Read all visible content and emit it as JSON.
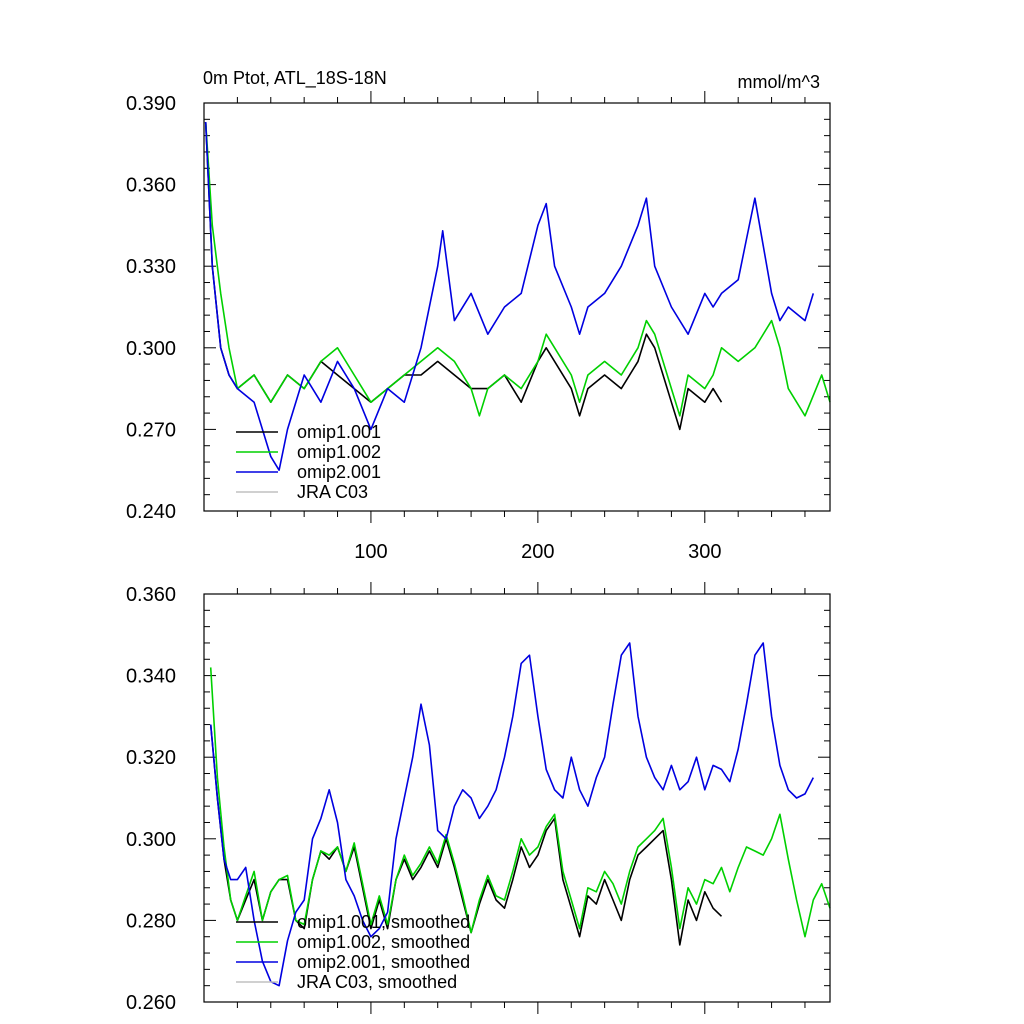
{
  "chart_data": [
    {
      "type": "line",
      "title_left": "0m Ptot, ATL_18S-18N",
      "title_right": "mmol/m^3",
      "xlabel": "",
      "ylabel": "",
      "xlim": [
        0,
        375
      ],
      "ylim": [
        0.24,
        0.39
      ],
      "x_ticks": [
        100,
        200,
        300
      ],
      "x_tick_labels": [
        "100",
        "200",
        "300"
      ],
      "y_ticks": [
        0.24,
        0.27,
        0.3,
        0.33,
        0.36,
        0.39
      ],
      "y_tick_labels": [
        "0.240",
        "0.270",
        "0.300",
        "0.330",
        "0.360",
        "0.390"
      ],
      "legend": "bottom-left",
      "series": [
        {
          "name": "omip1.001",
          "color": "#000000",
          "x": [
            1,
            5,
            10,
            15,
            20,
            30,
            40,
            50,
            60,
            70,
            80,
            90,
            100,
            110,
            120,
            130,
            140,
            150,
            160,
            170,
            180,
            190,
            200,
            205,
            210,
            220,
            225,
            230,
            240,
            250,
            260,
            265,
            270,
            280,
            285,
            290,
            300,
            305,
            310
          ],
          "y": [
            0.383,
            0.33,
            0.3,
            0.29,
            0.285,
            0.29,
            0.28,
            0.29,
            0.285,
            0.295,
            0.29,
            0.285,
            0.28,
            0.285,
            0.29,
            0.29,
            0.295,
            0.29,
            0.285,
            0.285,
            0.29,
            0.28,
            0.295,
            0.3,
            0.295,
            0.285,
            0.275,
            0.285,
            0.29,
            0.285,
            0.295,
            0.305,
            0.3,
            0.28,
            0.27,
            0.285,
            0.28,
            0.285,
            0.28
          ]
        },
        {
          "name": "omip1.002",
          "color": "#00d000",
          "x": [
            1,
            5,
            10,
            15,
            20,
            30,
            40,
            50,
            60,
            70,
            80,
            90,
            100,
            110,
            120,
            130,
            140,
            150,
            160,
            165,
            170,
            180,
            190,
            200,
            205,
            210,
            220,
            225,
            230,
            240,
            250,
            260,
            265,
            270,
            280,
            285,
            290,
            300,
            305,
            310,
            320,
            330,
            340,
            345,
            350,
            360,
            370,
            375
          ],
          "y": [
            0.383,
            0.345,
            0.32,
            0.3,
            0.285,
            0.29,
            0.28,
            0.29,
            0.285,
            0.295,
            0.3,
            0.29,
            0.28,
            0.285,
            0.29,
            0.295,
            0.3,
            0.295,
            0.285,
            0.275,
            0.285,
            0.29,
            0.285,
            0.295,
            0.305,
            0.3,
            0.29,
            0.28,
            0.29,
            0.295,
            0.29,
            0.3,
            0.31,
            0.305,
            0.285,
            0.275,
            0.29,
            0.285,
            0.29,
            0.3,
            0.295,
            0.3,
            0.31,
            0.3,
            0.285,
            0.275,
            0.29,
            0.28
          ]
        },
        {
          "name": "omip2.001",
          "color": "#0000e0",
          "x": [
            1,
            5,
            10,
            15,
            20,
            30,
            40,
            45,
            50,
            60,
            70,
            80,
            90,
            100,
            110,
            120,
            130,
            140,
            143,
            150,
            160,
            170,
            180,
            190,
            200,
            205,
            210,
            220,
            225,
            230,
            240,
            250,
            260,
            265,
            270,
            280,
            290,
            300,
            305,
            310,
            320,
            325,
            330,
            340,
            345,
            350,
            360,
            365
          ],
          "y": [
            0.383,
            0.33,
            0.3,
            0.29,
            0.285,
            0.28,
            0.26,
            0.255,
            0.27,
            0.29,
            0.28,
            0.295,
            0.285,
            0.27,
            0.285,
            0.28,
            0.3,
            0.33,
            0.343,
            0.31,
            0.32,
            0.305,
            0.315,
            0.32,
            0.345,
            0.353,
            0.33,
            0.315,
            0.305,
            0.315,
            0.32,
            0.33,
            0.345,
            0.355,
            0.33,
            0.315,
            0.305,
            0.32,
            0.315,
            0.32,
            0.325,
            0.34,
            0.355,
            0.32,
            0.31,
            0.315,
            0.31,
            0.32
          ]
        },
        {
          "name": "JRA C03",
          "color": "#c0c0c0",
          "x": [],
          "y": []
        }
      ]
    },
    {
      "type": "line",
      "title_left": "",
      "title_right": "",
      "xlabel": "",
      "ylabel": "",
      "xlim": [
        0,
        375
      ],
      "ylim": [
        0.26,
        0.36
      ],
      "x_ticks": [
        100,
        200,
        300
      ],
      "x_tick_labels": [],
      "y_ticks": [
        0.26,
        0.28,
        0.3,
        0.32,
        0.34,
        0.36
      ],
      "y_tick_labels": [
        "0.260",
        "0.280",
        "0.300",
        "0.320",
        "0.340",
        "0.360"
      ],
      "legend": "bottom-left",
      "series": [
        {
          "name": "omip1.001, smoothed",
          "color": "#000000",
          "x": [
            4,
            8,
            12,
            16,
            20,
            25,
            30,
            35,
            40,
            45,
            50,
            55,
            60,
            65,
            70,
            75,
            80,
            85,
            90,
            95,
            100,
            105,
            110,
            115,
            120,
            125,
            130,
            135,
            140,
            145,
            150,
            155,
            160,
            165,
            170,
            175,
            180,
            185,
            190,
            195,
            200,
            205,
            210,
            215,
            220,
            225,
            230,
            235,
            240,
            245,
            250,
            255,
            260,
            265,
            270,
            275,
            280,
            285,
            290,
            295,
            300,
            305,
            310
          ],
          "y": [
            0.328,
            0.31,
            0.295,
            0.285,
            0.28,
            0.285,
            0.29,
            0.28,
            0.287,
            0.29,
            0.29,
            0.28,
            0.278,
            0.29,
            0.297,
            0.295,
            0.298,
            0.292,
            0.298,
            0.288,
            0.278,
            0.285,
            0.278,
            0.29,
            0.295,
            0.29,
            0.293,
            0.297,
            0.293,
            0.3,
            0.293,
            0.285,
            0.277,
            0.284,
            0.29,
            0.285,
            0.283,
            0.29,
            0.298,
            0.293,
            0.296,
            0.302,
            0.305,
            0.29,
            0.283,
            0.276,
            0.286,
            0.284,
            0.29,
            0.285,
            0.28,
            0.29,
            0.296,
            0.298,
            0.3,
            0.302,
            0.29,
            0.274,
            0.285,
            0.28,
            0.287,
            0.283,
            0.281
          ]
        },
        {
          "name": "omip1.002, smoothed",
          "color": "#00d000",
          "x": [
            4,
            8,
            12,
            16,
            20,
            25,
            30,
            35,
            40,
            45,
            50,
            55,
            60,
            65,
            70,
            75,
            80,
            85,
            90,
            95,
            100,
            105,
            110,
            115,
            120,
            125,
            130,
            135,
            140,
            145,
            150,
            155,
            160,
            165,
            170,
            175,
            180,
            185,
            190,
            195,
            200,
            205,
            210,
            215,
            220,
            225,
            230,
            235,
            240,
            245,
            250,
            255,
            260,
            265,
            270,
            275,
            280,
            285,
            290,
            295,
            300,
            305,
            310,
            315,
            320,
            325,
            330,
            335,
            340,
            345,
            350,
            355,
            360,
            365,
            370,
            375
          ],
          "y": [
            0.342,
            0.315,
            0.298,
            0.285,
            0.28,
            0.286,
            0.292,
            0.28,
            0.287,
            0.29,
            0.291,
            0.28,
            0.279,
            0.29,
            0.297,
            0.296,
            0.298,
            0.292,
            0.299,
            0.289,
            0.279,
            0.286,
            0.279,
            0.29,
            0.296,
            0.291,
            0.294,
            0.298,
            0.294,
            0.301,
            0.294,
            0.286,
            0.277,
            0.285,
            0.291,
            0.286,
            0.285,
            0.292,
            0.3,
            0.296,
            0.298,
            0.303,
            0.306,
            0.292,
            0.285,
            0.278,
            0.288,
            0.287,
            0.292,
            0.289,
            0.284,
            0.292,
            0.298,
            0.3,
            0.302,
            0.305,
            0.293,
            0.278,
            0.288,
            0.284,
            0.29,
            0.289,
            0.293,
            0.287,
            0.293,
            0.298,
            0.297,
            0.296,
            0.3,
            0.306,
            0.295,
            0.285,
            0.276,
            0.285,
            0.289,
            0.283
          ]
        },
        {
          "name": "omip2.001, smoothed",
          "color": "#0000e0",
          "x": [
            4,
            8,
            12,
            16,
            20,
            25,
            30,
            35,
            40,
            45,
            50,
            55,
            60,
            65,
            70,
            75,
            80,
            85,
            90,
            95,
            100,
            105,
            110,
            115,
            120,
            125,
            130,
            135,
            140,
            145,
            150,
            155,
            160,
            165,
            170,
            175,
            180,
            185,
            190,
            195,
            200,
            205,
            210,
            215,
            220,
            225,
            230,
            235,
            240,
            245,
            250,
            255,
            260,
            265,
            270,
            275,
            280,
            285,
            290,
            295,
            300,
            305,
            310,
            315,
            320,
            325,
            330,
            335,
            340,
            345,
            350,
            355,
            360,
            365
          ],
          "y": [
            0.328,
            0.31,
            0.295,
            0.29,
            0.29,
            0.293,
            0.28,
            0.27,
            0.265,
            0.264,
            0.275,
            0.282,
            0.285,
            0.3,
            0.305,
            0.312,
            0.304,
            0.29,
            0.286,
            0.28,
            0.276,
            0.278,
            0.282,
            0.3,
            0.31,
            0.32,
            0.333,
            0.323,
            0.302,
            0.3,
            0.308,
            0.312,
            0.31,
            0.305,
            0.308,
            0.312,
            0.32,
            0.33,
            0.343,
            0.345,
            0.33,
            0.317,
            0.312,
            0.31,
            0.32,
            0.312,
            0.308,
            0.315,
            0.32,
            0.333,
            0.345,
            0.348,
            0.33,
            0.32,
            0.315,
            0.312,
            0.318,
            0.312,
            0.314,
            0.32,
            0.312,
            0.318,
            0.317,
            0.314,
            0.322,
            0.333,
            0.345,
            0.348,
            0.33,
            0.318,
            0.312,
            0.31,
            0.311,
            0.315
          ]
        },
        {
          "name": "JRA C03, smoothed",
          "color": "#c0c0c0",
          "x": [],
          "y": []
        }
      ]
    }
  ]
}
